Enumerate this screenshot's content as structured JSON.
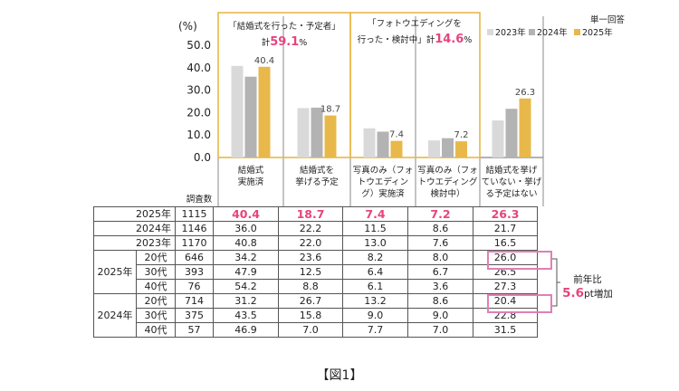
{
  "chart_data": {
    "type": "bar",
    "y_unit": "(%)",
    "ylim": [
      0,
      50
    ],
    "y_ticks": [
      "50.0",
      "40.0",
      "30.0",
      "20.0",
      "10.0",
      "0.0"
    ],
    "legend": {
      "title": "単一回答",
      "items": [
        "2023年",
        "2024年",
        "2025年"
      ]
    },
    "colors": [
      "#d9d9d9",
      "#b3b3b3",
      "#e8b84a"
    ],
    "categories": [
      "結婚式\n実施済",
      "結婚式を\n挙げる予定",
      "写真のみ（フォ\nトウエディン\nグ）実施済",
      "写真のみ（フォ\nトウエディング\n検討中）",
      "結婚式を挙げ\nていない・挙げ\nる予定はない"
    ],
    "series": [
      {
        "name": "2023年",
        "values": [
          40.8,
          22.0,
          13.0,
          7.6,
          16.5
        ]
      },
      {
        "name": "2024年",
        "values": [
          36.0,
          22.2,
          11.5,
          8.6,
          21.7
        ]
      },
      {
        "name": "2025年",
        "values": [
          40.4,
          18.7,
          7.4,
          7.2,
          26.3
        ]
      }
    ],
    "bar_labels_2025": [
      "40.4",
      "18.7",
      "7.4",
      "7.2",
      "26.3"
    ],
    "group_boxes": [
      {
        "title": "「結婚式を行った・予定者」",
        "total_prefix": "計",
        "total": "59.1",
        "total_suffix": "%"
      },
      {
        "title1": "「フォトウエディングを",
        "title2": "行った・検討中」",
        "total_prefix": "計",
        "total": "14.6",
        "total_suffix": "%"
      }
    ]
  },
  "table": {
    "n_header": "調査数",
    "year_rows": [
      {
        "label": "2025年",
        "n": "1115",
        "values": [
          "40.4",
          "18.7",
          "7.4",
          "7.2",
          "26.3"
        ]
      },
      {
        "label": "2024年",
        "n": "1146",
        "values": [
          "36.0",
          "22.2",
          "11.5",
          "8.6",
          "21.7"
        ]
      },
      {
        "label": "2023年",
        "n": "1170",
        "values": [
          "40.8",
          "22.0",
          "13.0",
          "7.6",
          "16.5"
        ]
      }
    ],
    "age_groups": [
      {
        "year": "2025年",
        "rows": [
          {
            "age": "20代",
            "n": "646",
            "values": [
              "34.2",
              "23.6",
              "8.2",
              "8.0",
              "26.0"
            ]
          },
          {
            "age": "30代",
            "n": "393",
            "values": [
              "47.9",
              "12.5",
              "6.4",
              "6.7",
              "26.5"
            ]
          },
          {
            "age": "40代",
            "n": "76",
            "values": [
              "54.2",
              "8.8",
              "6.1",
              "3.6",
              "27.3"
            ]
          }
        ]
      },
      {
        "year": "2024年",
        "rows": [
          {
            "age": "20代",
            "n": "714",
            "values": [
              "31.2",
              "26.7",
              "13.2",
              "8.6",
              "20.4"
            ]
          },
          {
            "age": "30代",
            "n": "375",
            "values": [
              "43.5",
              "15.8",
              "9.0",
              "9.0",
              "22.8"
            ]
          },
          {
            "age": "40代",
            "n": "57",
            "values": [
              "46.9",
              "7.0",
              "7.7",
              "7.0",
              "31.5"
            ]
          }
        ]
      }
    ]
  },
  "note": {
    "line1": "前年比",
    "value": "5.6",
    "suffix": "pt増加"
  },
  "caption": "【図1】"
}
